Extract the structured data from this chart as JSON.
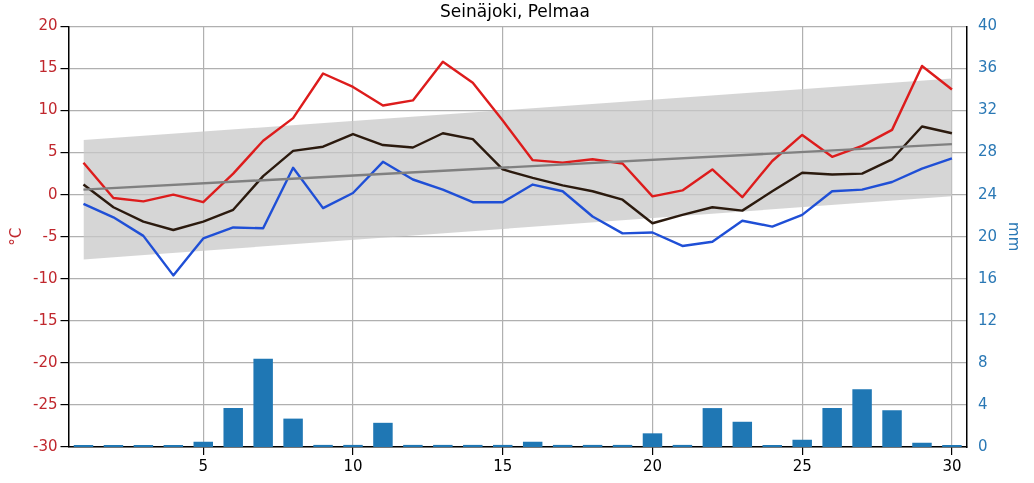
{
  "chart_data": {
    "type": "line",
    "title": "Seinäjoki, Pelmaa",
    "ylabel": "°C",
    "y2label": "mm",
    "x": [
      1,
      2,
      3,
      4,
      5,
      6,
      7,
      8,
      9,
      10,
      11,
      12,
      13,
      14,
      15,
      16,
      17,
      18,
      19,
      20,
      21,
      22,
      23,
      24,
      25,
      26,
      27,
      28,
      29,
      30
    ],
    "xlim": [
      0.5,
      30.5
    ],
    "xticks": [
      5,
      10,
      15,
      20,
      25,
      30
    ],
    "ylim": [
      -30,
      20
    ],
    "yticks": [
      -30,
      -25,
      -20,
      -15,
      -10,
      -5,
      0,
      5,
      10,
      15,
      20
    ],
    "y2lim": [
      0,
      40
    ],
    "y2ticks": [
      0,
      4,
      8,
      12,
      16,
      20,
      24,
      28,
      32,
      36,
      40
    ],
    "grid": true,
    "legend": false,
    "marker": "none",
    "line_style": "solid",
    "series": [
      {
        "type": "bar",
        "axis": "y2",
        "color": "#1f77b4",
        "values": [
          0.2,
          0.2,
          0.2,
          0.2,
          0.5,
          3.7,
          8.4,
          2.7,
          0.2,
          0.2,
          2.3,
          0.2,
          0.2,
          0.2,
          0.2,
          0.5,
          0.2,
          0.2,
          0.2,
          1.3,
          0.2,
          3.7,
          2.4,
          0.2,
          0.7,
          3.7,
          5.5,
          3.5,
          0.4,
          0.2
        ]
      },
      {
        "color": "#808080",
        "x": [
          1,
          30
        ],
        "values": [
          0.6,
          6.0
        ],
        "lower": [
          -7.7,
          -0.2
        ],
        "upper": [
          6.5,
          13.8
        ]
      },
      {
        "color": "#dd1c1c",
        "values": [
          3.8,
          -0.4,
          -0.8,
          0.0,
          -0.9,
          2.5,
          6.4,
          9.1,
          14.4,
          12.8,
          10.6,
          11.2,
          15.8,
          13.3,
          8.8,
          4.1,
          3.8,
          4.2,
          3.7,
          -0.2,
          0.5,
          3.0,
          -0.3,
          4.0,
          7.1,
          4.5,
          5.8,
          7.7,
          15.3,
          12.5
        ]
      },
      {
        "color": "#2b1a0e",
        "values": [
          1.2,
          -1.5,
          -3.2,
          -4.2,
          -3.2,
          -1.8,
          2.2,
          5.2,
          5.7,
          7.2,
          5.9,
          5.6,
          7.3,
          6.6,
          3.0,
          2.0,
          1.1,
          0.4,
          -0.6,
          -3.4,
          -2.4,
          -1.5,
          -1.9,
          0.4,
          2.6,
          2.4,
          2.5,
          4.2,
          8.1,
          7.3
        ]
      },
      {
        "color": "#1f4fd6",
        "values": [
          -1.1,
          -2.7,
          -4.9,
          -9.6,
          -5.2,
          -3.9,
          -4.0,
          3.2,
          -1.6,
          0.2,
          3.9,
          1.8,
          0.6,
          -0.9,
          -0.9,
          1.2,
          0.4,
          -2.6,
          -4.6,
          -4.5,
          -6.1,
          -5.6,
          -3.1,
          -3.8,
          -2.4,
          0.4,
          0.6,
          1.5,
          3.1,
          4.3
        ]
      }
    ]
  }
}
